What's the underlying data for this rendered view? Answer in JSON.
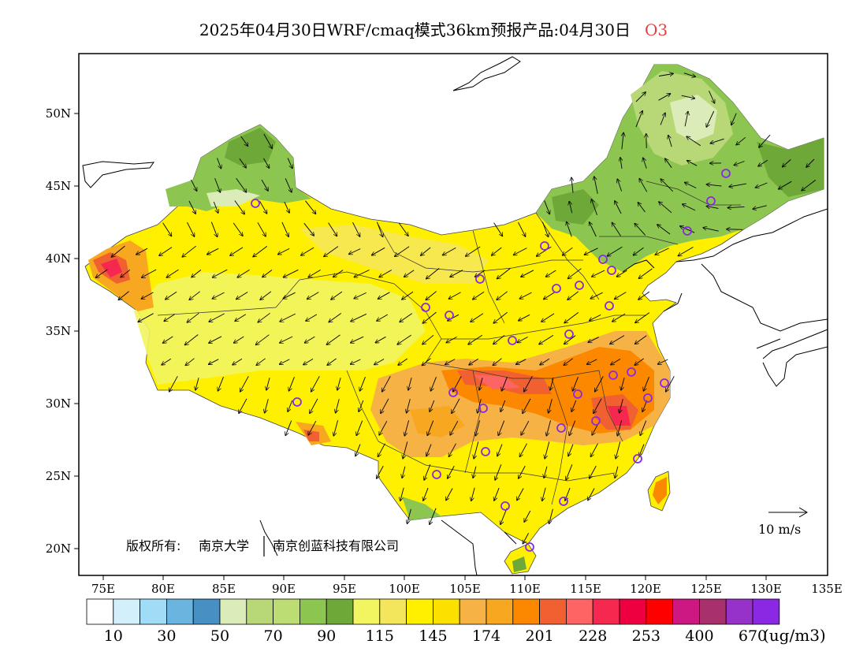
{
  "title": {
    "main": "2025年04月30日WRF/cmaq模式36km预报产品:04月30日",
    "species": "O3"
  },
  "map": {
    "lat_ticks": [
      "50N",
      "45N",
      "40N",
      "35N",
      "30N",
      "25N",
      "20N"
    ],
    "lon_ticks": [
      "75E",
      "80E",
      "85E",
      "90E",
      "95E",
      "100E",
      "105E",
      "110E",
      "115E",
      "120E",
      "125E",
      "130E",
      "135E"
    ],
    "copyright_label": "版权所有:",
    "copyright_org1": "南京大学",
    "copyright_org2": "南京创蓝科技有限公司",
    "wind_reference": "10 m/s"
  },
  "colorbar": {
    "colors": [
      "#ffffff",
      "#d4effc",
      "#a0dcf6",
      "#6ab4e0",
      "#4690c4",
      "#dcecb8",
      "#b8d878",
      "#bcdc74",
      "#8cc650",
      "#6ea838",
      "#f2f460",
      "#f4e65c",
      "#fff000",
      "#fbe000",
      "#f6b244",
      "#f8a820",
      "#fc8800",
      "#f06030",
      "#fd6464",
      "#f62850",
      "#ee0040",
      "#ff0000",
      "#cc1880",
      "#a8306c",
      "#9632c8",
      "#8a28e4"
    ],
    "labels": [
      "10",
      "30",
      "50",
      "70",
      "90",
      "115",
      "145",
      "174",
      "201",
      "228",
      "253",
      "400",
      "670"
    ],
    "unit": "(ug/m3)"
  }
}
